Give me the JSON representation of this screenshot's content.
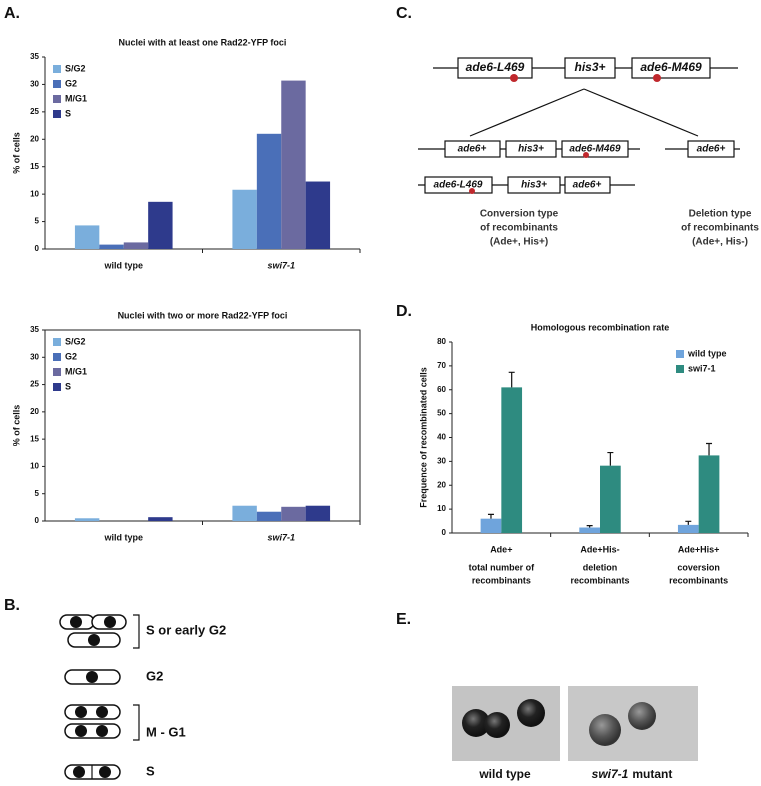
{
  "panels": {
    "a": "A.",
    "b": "B.",
    "c": "C.",
    "d": "D.",
    "e": "E."
  },
  "chart_data": [
    {
      "type": "bar",
      "title": "Nuclei with at least one Rad22-YFP foci",
      "y_label": "% of cells",
      "categories": [
        "wild type",
        "swi7-1"
      ],
      "category_style": [
        "normal",
        "italic"
      ],
      "series": [
        {
          "name": "S/G2",
          "color": "#7aaedc",
          "values": [
            4.3,
            10.8
          ]
        },
        {
          "name": "G2",
          "color": "#4a6fb8",
          "values": [
            0.8,
            21
          ]
        },
        {
          "name": "M/G1",
          "color": "#6b6aa0",
          "values": [
            1.2,
            30.7
          ]
        },
        {
          "name": "S",
          "color": "#2e3a8c",
          "values": [
            8.6,
            12.3
          ]
        }
      ],
      "ylim": [
        0,
        35
      ],
      "yticks": [
        0,
        5,
        10,
        15,
        20,
        25,
        30,
        35
      ],
      "legend": "upper left",
      "border": false
    },
    {
      "type": "bar",
      "title": "Nuclei with two or more Rad22-YFP foci",
      "y_label": "% of cells",
      "categories": [
        "wild type",
        "swi7-1"
      ],
      "category_style": [
        "normal",
        "italic"
      ],
      "series": [
        {
          "name": "S/G2",
          "color": "#7aaedc",
          "values": [
            0.5,
            2.8
          ]
        },
        {
          "name": "G2",
          "color": "#4a6fb8",
          "values": [
            0,
            1.7
          ]
        },
        {
          "name": "M/G1",
          "color": "#6b6aa0",
          "values": [
            0,
            2.6
          ]
        },
        {
          "name": "S",
          "color": "#2e3a8c",
          "values": [
            0.7,
            2.8
          ]
        }
      ],
      "ylim": [
        0,
        35
      ],
      "yticks": [
        0,
        5,
        10,
        15,
        20,
        25,
        30,
        35
      ],
      "legend": "upper left",
      "border": true
    },
    {
      "type": "bar",
      "title": "Homologous recombination rate",
      "y_label": "Frequence of recombinated cells",
      "categories": [
        "Ade+",
        "Ade+His-",
        "Ade+His+"
      ],
      "category_style": [
        "normal",
        "normal",
        "normal"
      ],
      "category_descriptions": [
        [
          "total number of",
          "recombinants"
        ],
        [
          "deletion",
          "recombinants"
        ],
        [
          "coversion",
          "recombinants"
        ]
      ],
      "series": [
        {
          "name": "wild type",
          "color": "#6fa4dc",
          "values": [
            6,
            2.3,
            3.4
          ],
          "errors": [
            1.8,
            0.8,
            1.5
          ]
        },
        {
          "name": "swi7-1",
          "color": "#2e8b80",
          "values": [
            61,
            28.2,
            32.5
          ],
          "errors": [
            6.3,
            5.5,
            5
          ]
        }
      ],
      "ylim": [
        0,
        80
      ],
      "yticks": [
        0,
        10,
        20,
        30,
        40,
        50,
        60,
        70,
        80
      ],
      "legend": "upper right",
      "border": false
    }
  ],
  "diagram_b": {
    "stages": [
      "S or early G2",
      "G2",
      "M - G1",
      "S"
    ]
  },
  "diagram_c": {
    "top": [
      "ade6-L469",
      "his3+",
      "ade6-M469"
    ],
    "row1": [
      "ade6+",
      "his3+",
      "ade6-M469"
    ],
    "row2": [
      "ade6-L469",
      "his3+",
      "ade6+"
    ],
    "deletion": "ade6+",
    "conversion_caption": [
      "Conversion type",
      "of recombinants",
      "(Ade+, His+)"
    ],
    "deletion_caption": [
      "Deletion type",
      "of recombinants",
      "(Ade+, His-)"
    ]
  },
  "photos_e": {
    "wild_type": "wild type",
    "mutant_italic": "swi7-1",
    "mutant_rest": "mutant"
  }
}
